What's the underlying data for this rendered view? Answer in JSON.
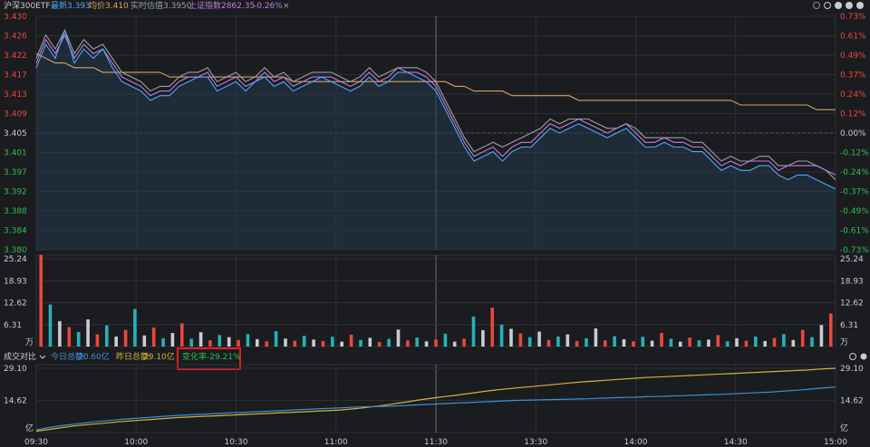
{
  "header": {
    "name": "沪深300ETF",
    "latest_label": "最新",
    "latest_value": "3.393",
    "avg_label": "均价",
    "avg_value": "3.410",
    "iopv_label": "实时估值",
    "iopv_value": "3.3950",
    "index_label": "上证指数",
    "index_value": "2862.35",
    "index_change": "-0.26%",
    "close_glyph": "×"
  },
  "toolbar": {
    "compare_label": "成交对比",
    "today_label": "今日总额:",
    "today_value": "20.60亿",
    "yesterday_label": "昨日总额:",
    "yesterday_value": "29.10亿",
    "change_label": "变化率",
    "change_value": "-29.21%"
  },
  "chart_data": [
    {
      "type": "line",
      "panel": "price",
      "x_ticks": [
        "09:30",
        "10:00",
        "10:30",
        "11:00",
        "11:30",
        "13:30",
        "14:00",
        "14:30",
        "15:00"
      ],
      "y_ticks_left": [
        "3.430",
        "3.426",
        "3.422",
        "3.417",
        "3.413",
        "3.409",
        "3.405",
        "3.401",
        "3.397",
        "3.392",
        "3.388",
        "3.384",
        "3.380"
      ],
      "y_ticks_right": [
        "0.73%",
        "0.61%",
        "0.49%",
        "0.37%",
        "0.24%",
        "0.12%",
        "0.00%",
        "-0.12%",
        "-0.24%",
        "-0.37%",
        "-0.49%",
        "-0.61%",
        "-0.73%"
      ],
      "ylim": [
        3.38,
        3.43
      ],
      "ref_price": 3.405,
      "series": [
        {
          "name": "最新",
          "color": "#4aa8ff",
          "values": [
            3.419,
            3.424,
            3.421,
            3.427,
            3.42,
            3.423,
            3.421,
            3.423,
            3.419,
            3.416,
            3.415,
            3.414,
            3.412,
            3.413,
            3.413,
            3.415,
            3.416,
            3.417,
            3.417,
            3.414,
            3.415,
            3.416,
            3.414,
            3.416,
            3.417,
            3.415,
            3.416,
            3.414,
            3.415,
            3.416,
            3.417,
            3.416,
            3.415,
            3.414,
            3.415,
            3.417,
            3.415,
            3.416,
            3.418,
            3.418,
            3.417,
            3.416,
            3.414,
            3.41,
            3.406,
            3.402,
            3.399,
            3.4,
            3.401,
            3.399,
            3.401,
            3.402,
            3.402,
            3.404,
            3.406,
            3.405,
            3.406,
            3.407,
            3.406,
            3.405,
            3.404,
            3.405,
            3.406,
            3.404,
            3.402,
            3.402,
            3.403,
            3.402,
            3.402,
            3.401,
            3.401,
            3.399,
            3.397,
            3.398,
            3.397,
            3.397,
            3.398,
            3.398,
            3.396,
            3.395,
            3.396,
            3.396,
            3.395,
            3.394,
            3.393
          ]
        },
        {
          "name": "上证指数",
          "color": "#c27ddf",
          "values": [
            3.42,
            3.425,
            3.422,
            3.426,
            3.421,
            3.424,
            3.422,
            3.423,
            3.42,
            3.417,
            3.416,
            3.415,
            3.413,
            3.414,
            3.414,
            3.416,
            3.417,
            3.417,
            3.418,
            3.415,
            3.416,
            3.417,
            3.415,
            3.416,
            3.418,
            3.416,
            3.417,
            3.415,
            3.416,
            3.417,
            3.417,
            3.417,
            3.416,
            3.415,
            3.416,
            3.418,
            3.416,
            3.417,
            3.419,
            3.418,
            3.418,
            3.417,
            3.415,
            3.411,
            3.407,
            3.403,
            3.4,
            3.401,
            3.402,
            3.4,
            3.402,
            3.403,
            3.403,
            3.405,
            3.407,
            3.406,
            3.407,
            3.408,
            3.407,
            3.406,
            3.405,
            3.406,
            3.407,
            3.405,
            3.403,
            3.403,
            3.404,
            3.403,
            3.403,
            3.402,
            3.402,
            3.4,
            3.398,
            3.399,
            3.398,
            3.399,
            3.399,
            3.399,
            3.397,
            3.398,
            3.398,
            3.398,
            3.398,
            3.397,
            3.396
          ]
        },
        {
          "name": "实时估值",
          "color": "#9aa0a8",
          "values": [
            3.421,
            3.426,
            3.423,
            3.427,
            3.422,
            3.425,
            3.423,
            3.424,
            3.421,
            3.418,
            3.417,
            3.416,
            3.414,
            3.415,
            3.415,
            3.417,
            3.418,
            3.418,
            3.419,
            3.416,
            3.417,
            3.418,
            3.416,
            3.417,
            3.419,
            3.417,
            3.418,
            3.416,
            3.417,
            3.418,
            3.418,
            3.418,
            3.417,
            3.416,
            3.417,
            3.419,
            3.417,
            3.418,
            3.419,
            3.419,
            3.419,
            3.418,
            3.416,
            3.412,
            3.408,
            3.404,
            3.401,
            3.402,
            3.403,
            3.402,
            3.403,
            3.404,
            3.405,
            3.406,
            3.408,
            3.407,
            3.408,
            3.408,
            3.408,
            3.407,
            3.406,
            3.406,
            3.407,
            3.406,
            3.404,
            3.404,
            3.404,
            3.404,
            3.404,
            3.403,
            3.403,
            3.401,
            3.399,
            3.4,
            3.399,
            3.399,
            3.4,
            3.4,
            3.398,
            3.398,
            3.399,
            3.399,
            3.398,
            3.397,
            3.395
          ]
        },
        {
          "name": "均价",
          "color": "#d9a25f",
          "values": [
            3.422,
            3.421,
            3.42,
            3.42,
            3.419,
            3.419,
            3.419,
            3.418,
            3.418,
            3.418,
            3.418,
            3.418,
            3.418,
            3.418,
            3.417,
            3.417,
            3.417,
            3.417,
            3.417,
            3.417,
            3.417,
            3.417,
            3.417,
            3.417,
            3.417,
            3.417,
            3.417,
            3.416,
            3.416,
            3.416,
            3.416,
            3.416,
            3.416,
            3.416,
            3.416,
            3.416,
            3.416,
            3.416,
            3.416,
            3.416,
            3.416,
            3.416,
            3.416,
            3.416,
            3.415,
            3.415,
            3.414,
            3.414,
            3.414,
            3.414,
            3.413,
            3.413,
            3.413,
            3.413,
            3.413,
            3.413,
            3.413,
            3.412,
            3.412,
            3.412,
            3.412,
            3.412,
            3.412,
            3.412,
            3.412,
            3.412,
            3.412,
            3.412,
            3.412,
            3.412,
            3.412,
            3.412,
            3.412,
            3.412,
            3.411,
            3.411,
            3.411,
            3.411,
            3.411,
            3.411,
            3.411,
            3.411,
            3.41,
            3.41,
            3.41
          ]
        }
      ]
    },
    {
      "type": "bar",
      "panel": "volume",
      "unit_label": "万",
      "y_ticks": [
        "25.24",
        "18.93",
        "12.62",
        "6.31"
      ],
      "ylim": [
        0,
        25.24
      ],
      "values": [
        26.4,
        12.1,
        7.3,
        5.6,
        4.2,
        7.8,
        3.5,
        6.1,
        2.9,
        4.8,
        10.8,
        3.2,
        5.5,
        2.4,
        3.9,
        6.7,
        2.2,
        4.1,
        1.8,
        3.3,
        2.7,
        1.9,
        3.6,
        2.1,
        1.5,
        4.4,
        2.3,
        1.7,
        3.1,
        2.0,
        1.6,
        2.8,
        1.4,
        3.4,
        1.9,
        2.5,
        1.3,
        2.2,
        4.9,
        1.8,
        2.6,
        1.5,
        2.0,
        3.7,
        1.4,
        2.3,
        8.6,
        4.7,
        11.2,
        6.3,
        5.1,
        3.8,
        2.7,
        4.3,
        1.9,
        2.9,
        3.5,
        1.6,
        2.4,
        5.2,
        1.8,
        3.0,
        2.1,
        1.5,
        2.8,
        1.7,
        3.9,
        2.2,
        1.4,
        2.6,
        1.8,
        2.0,
        3.3,
        1.5,
        2.4,
        1.7,
        2.9,
        1.6,
        2.5,
        3.6,
        1.9,
        4.8,
        2.7,
        6.2,
        9.5
      ]
    },
    {
      "type": "line",
      "panel": "turnover",
      "unit_label": "亿",
      "y_ticks": [
        "29.10",
        "14.62"
      ],
      "ylim": [
        0,
        29.1
      ],
      "series": [
        {
          "name": "昨日总额",
          "color": "#d4b13b",
          "values": [
            0.6,
            1.2,
            1.8,
            2.4,
            3.0,
            3.4,
            3.8,
            4.2,
            4.6,
            5.0,
            5.3,
            5.6,
            5.9,
            6.2,
            6.5,
            6.8,
            7.0,
            7.2,
            7.4,
            7.6,
            7.8,
            8.0,
            8.2,
            8.4,
            8.6,
            8.8,
            9.0,
            9.2,
            9.4,
            9.6,
            9.8,
            10.0,
            10.2,
            10.6,
            11.0,
            11.5,
            12.0,
            12.6,
            13.3,
            13.9,
            14.6,
            15.2,
            15.8,
            16.3,
            16.8,
            17.4,
            18.0,
            18.6,
            19.1,
            19.6,
            20.0,
            20.4,
            20.8,
            21.2,
            21.6,
            22.0,
            22.4,
            22.8,
            23.1,
            23.4,
            23.7,
            24.0,
            24.3,
            24.6,
            24.9,
            25.1,
            25.3,
            25.5,
            25.7,
            25.9,
            26.1,
            26.3,
            26.5,
            26.7,
            26.9,
            27.1,
            27.3,
            27.5,
            27.7,
            27.9,
            28.1,
            28.3,
            28.6,
            28.9,
            29.1
          ]
        },
        {
          "name": "今日总额",
          "color": "#3c8fd6",
          "values": [
            1.2,
            2.0,
            2.7,
            3.3,
            3.8,
            4.3,
            4.8,
            5.2,
            5.6,
            6.0,
            6.3,
            6.6,
            6.9,
            7.2,
            7.5,
            7.8,
            8.0,
            8.2,
            8.4,
            8.6,
            8.8,
            9.0,
            9.2,
            9.4,
            9.6,
            9.8,
            10.0,
            10.2,
            10.4,
            10.6,
            10.8,
            11.0,
            11.2,
            11.4,
            11.6,
            11.7,
            11.8,
            11.9,
            12.1,
            12.3,
            12.5,
            12.7,
            12.9,
            13.1,
            13.3,
            13.5,
            13.7,
            13.9,
            14.1,
            14.3,
            14.5,
            14.6,
            14.7,
            14.8,
            14.9,
            15.0,
            15.1,
            15.2,
            15.3,
            15.5,
            15.6,
            15.8,
            15.9,
            16.0,
            16.2,
            16.3,
            16.4,
            16.6,
            16.7,
            16.9,
            17.0,
            17.2,
            17.3,
            17.5,
            17.7,
            17.9,
            18.1,
            18.3,
            18.6,
            18.9,
            19.2,
            19.5,
            19.9,
            20.3,
            20.6
          ]
        }
      ]
    }
  ]
}
